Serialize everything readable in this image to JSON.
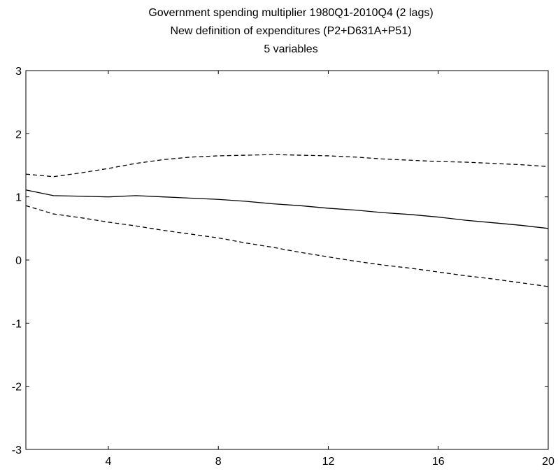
{
  "chart_data": {
    "type": "line",
    "title": [
      "Government spending multiplier 1980Q1-2010Q4 (2 lags)",
      "New definition of expenditures (P2+D631A+P51)",
      "5 variables"
    ],
    "xlabel": "",
    "ylabel": "",
    "xlim": [
      1,
      20
    ],
    "ylim": [
      -3,
      3
    ],
    "xticks": [
      4,
      8,
      12,
      16,
      20
    ],
    "yticks": [
      -3,
      -2,
      -1,
      0,
      1,
      2,
      3
    ],
    "grid": false,
    "legend": "none",
    "x": [
      1,
      2,
      3,
      4,
      5,
      6,
      7,
      8,
      9,
      10,
      11,
      12,
      13,
      14,
      15,
      16,
      17,
      18,
      19,
      20
    ],
    "series": [
      {
        "style": "solid",
        "color": "#000000",
        "values": [
          1.11,
          1.02,
          1.01,
          1.0,
          1.02,
          1.0,
          0.98,
          0.96,
          0.93,
          0.89,
          0.86,
          0.82,
          0.79,
          0.75,
          0.72,
          0.68,
          0.63,
          0.59,
          0.55,
          0.5
        ]
      },
      {
        "style": "dashed",
        "color": "#000000",
        "values": [
          1.36,
          1.32,
          1.38,
          1.45,
          1.53,
          1.59,
          1.63,
          1.65,
          1.66,
          1.67,
          1.66,
          1.65,
          1.63,
          1.6,
          1.58,
          1.56,
          1.55,
          1.53,
          1.51,
          1.48
        ]
      },
      {
        "style": "dashed",
        "color": "#000000",
        "values": [
          0.86,
          0.73,
          0.67,
          0.6,
          0.54,
          0.47,
          0.41,
          0.35,
          0.27,
          0.2,
          0.12,
          0.05,
          -0.02,
          -0.08,
          -0.13,
          -0.19,
          -0.25,
          -0.3,
          -0.36,
          -0.42
        ]
      }
    ]
  }
}
